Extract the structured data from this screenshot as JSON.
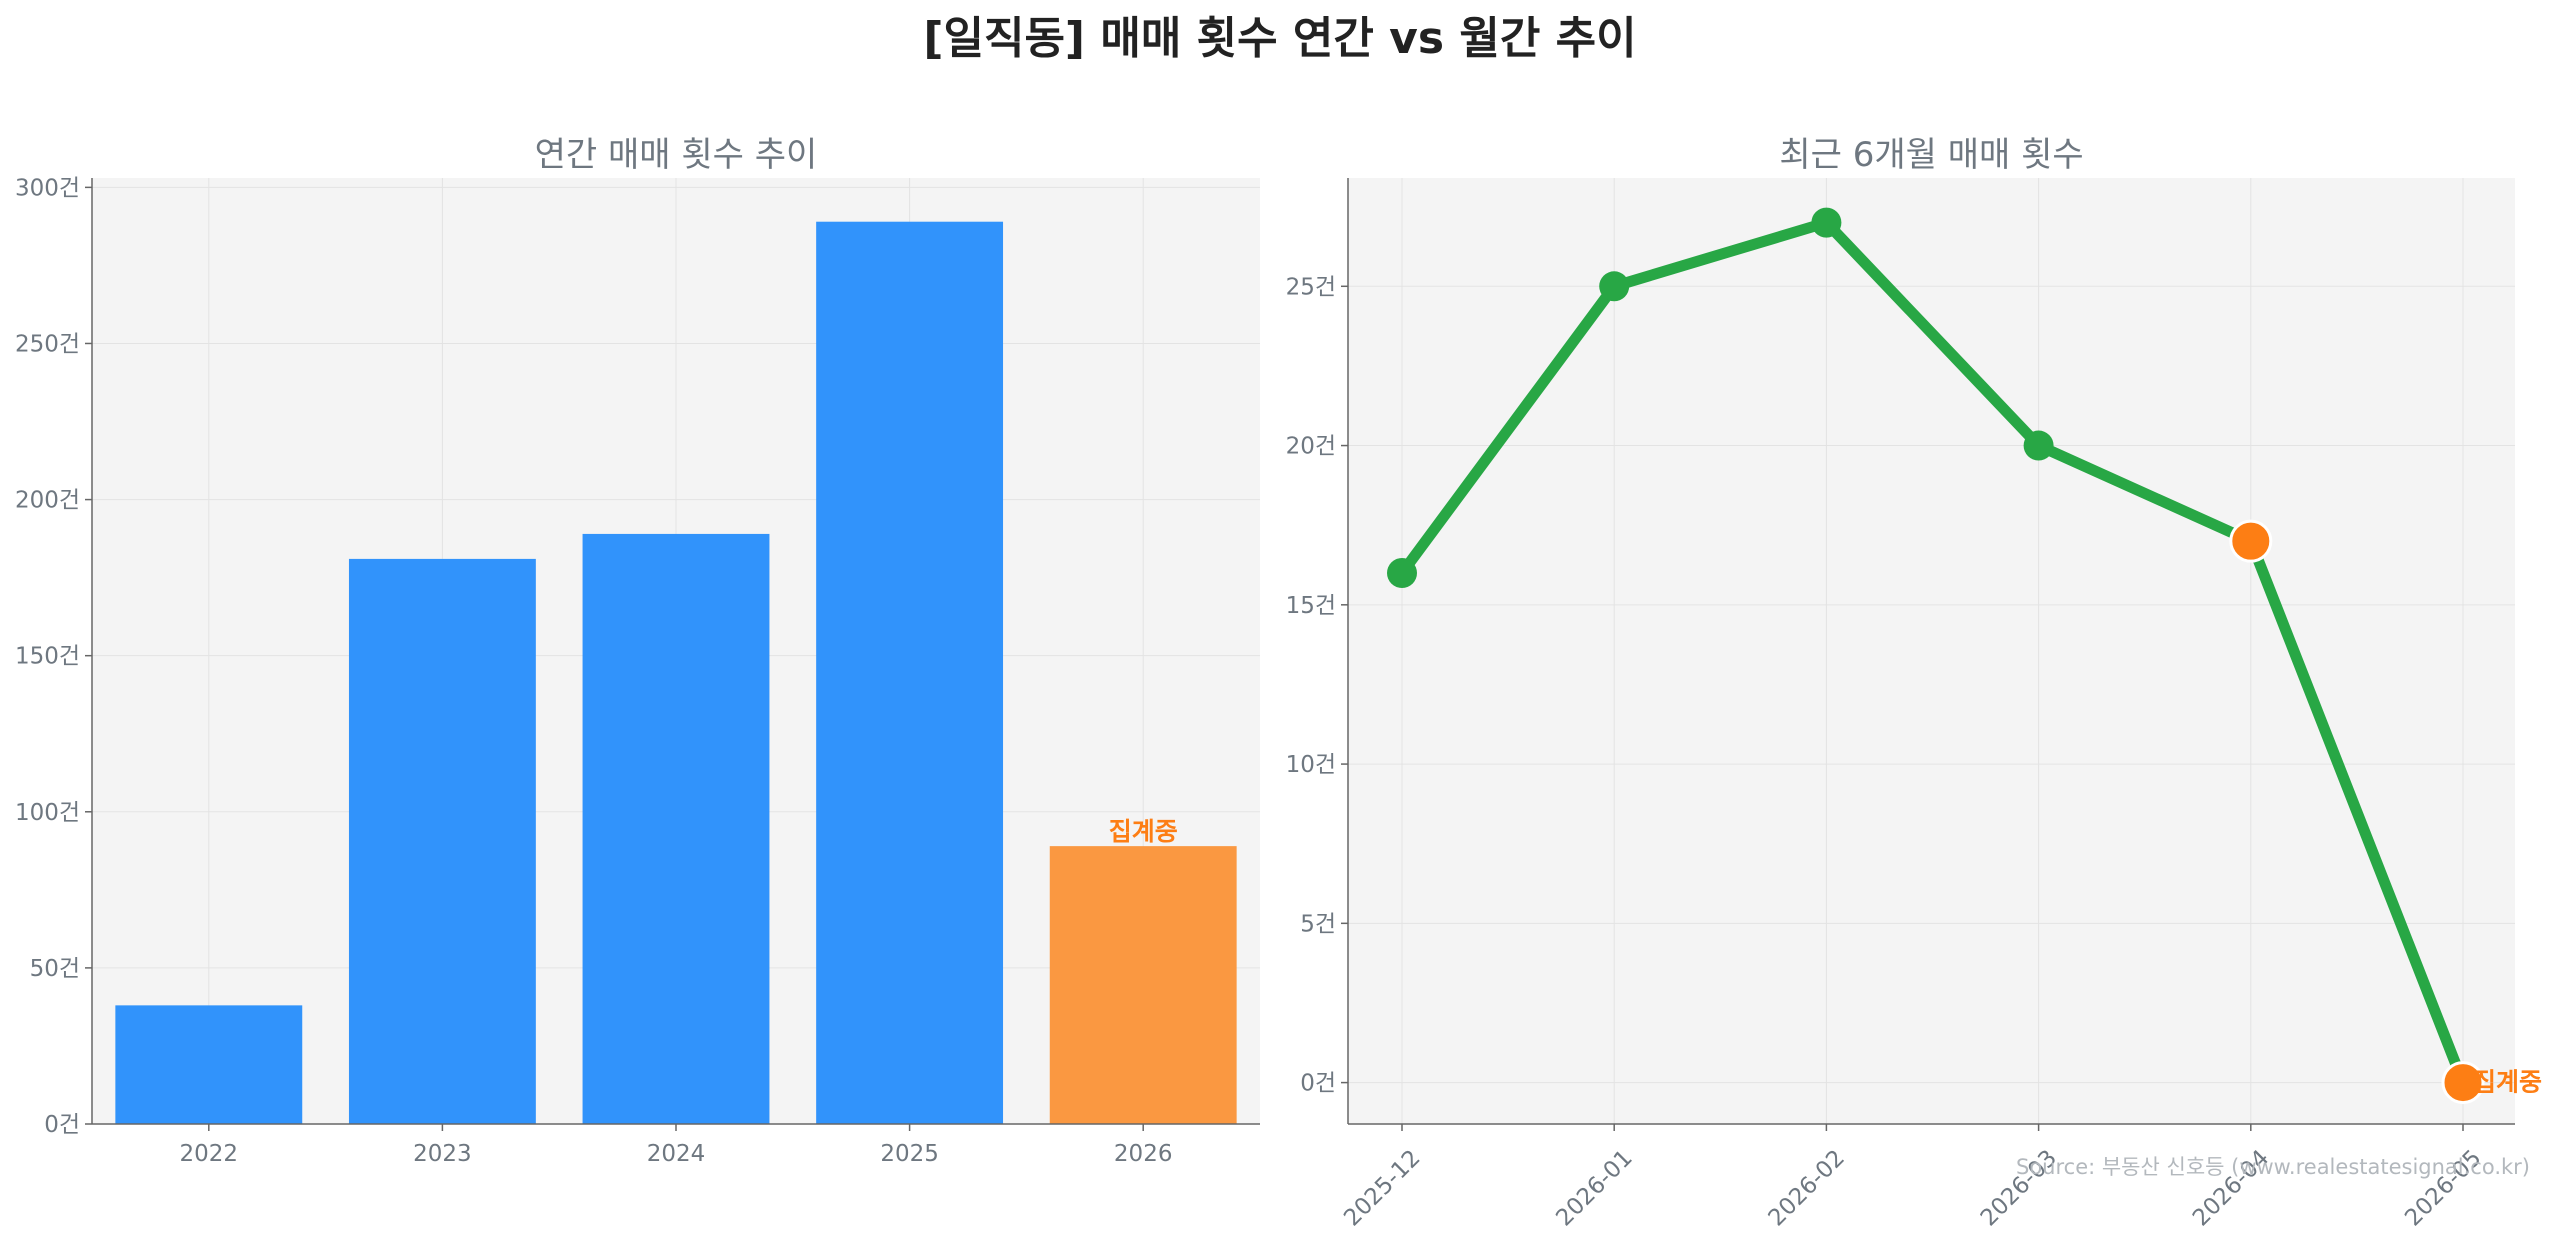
{
  "title": "[일직동] 매매 횟수 연간 vs 월간 추이",
  "source": "Source: 부동산 신호등 (www.realestatesignal.co.kr)",
  "colors": {
    "bar": "#3193fb",
    "bar_partial": "#fa9841",
    "line": "#28a745",
    "marker": "#28a745",
    "marker_partial": "#fd7e14",
    "annotation": "#fd7e14",
    "panel_bg": "#f4f4f4",
    "grid": "#e3e3e3",
    "axis": "#666666"
  },
  "chart_data": [
    {
      "type": "bar",
      "title": "연간 매매 횟수 추이",
      "categories": [
        "2022",
        "2023",
        "2024",
        "2025",
        "2026"
      ],
      "values": [
        38,
        181,
        189,
        289,
        89
      ],
      "partial": [
        false,
        false,
        false,
        false,
        true
      ],
      "annotation": {
        "category": "2026",
        "text": "집계중"
      },
      "ylim": [
        0,
        303
      ],
      "yticks": [
        0,
        50,
        100,
        150,
        200,
        250,
        300
      ],
      "ytick_labels": [
        "0건",
        "50건",
        "100건",
        "150건",
        "200건",
        "250건",
        "300건"
      ],
      "grid": true,
      "xlabel": "",
      "ylabel": ""
    },
    {
      "type": "line",
      "title": "최근 6개월 매매 횟수",
      "x": [
        "2025-12",
        "2026-01",
        "2026-02",
        "2026-03",
        "2026-04",
        "2026-05"
      ],
      "values": [
        16,
        25,
        27,
        20,
        17,
        0
      ],
      "partial": [
        false,
        false,
        false,
        false,
        true,
        true
      ],
      "annotation": {
        "x": "2026-05",
        "text": "집계중"
      },
      "ylim": [
        -1.3,
        28.4
      ],
      "yticks": [
        0,
        5,
        10,
        15,
        20,
        25
      ],
      "ytick_labels": [
        "0건",
        "5건",
        "10건",
        "15건",
        "20건",
        "25건"
      ],
      "grid": true,
      "xlabel": "",
      "ylabel": ""
    }
  ]
}
